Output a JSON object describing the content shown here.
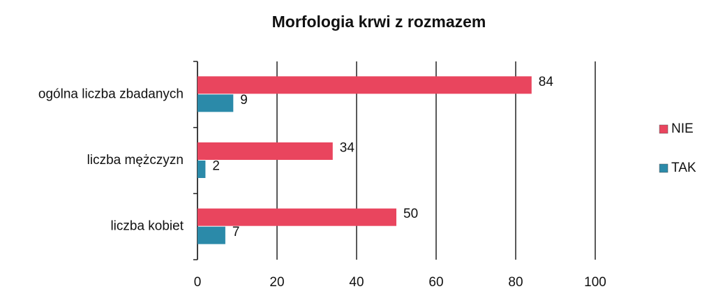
{
  "chart_data": {
    "type": "bar",
    "orientation": "horizontal",
    "title": "Morfologia krwi z rozmazem",
    "categories": [
      "ogólna liczba zbadanych",
      "liczba mężczyzn",
      "liczba kobiet"
    ],
    "series": [
      {
        "name": "NIE",
        "color": "#e9455e",
        "values": [
          84,
          34,
          50
        ]
      },
      {
        "name": "TAK",
        "color": "#2b8aa9",
        "values": [
          9,
          2,
          7
        ]
      }
    ],
    "xlim": [
      0,
      100
    ],
    "xticks": [
      0,
      20,
      40,
      60,
      80,
      100
    ],
    "grid": true,
    "legend": "right"
  }
}
